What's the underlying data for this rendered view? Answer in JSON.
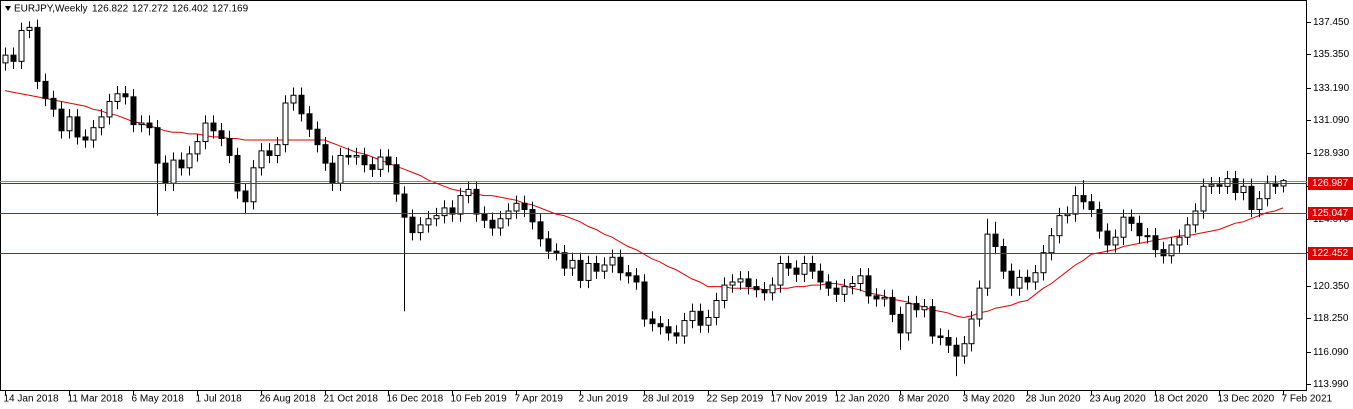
{
  "chart_data": {
    "type": "candlestick",
    "title": "EURJPY,Weekly",
    "categories": [
      "14 Jan 2018",
      null,
      null,
      null,
      null,
      null,
      null,
      null,
      "11 Mar 2018",
      null,
      null,
      null,
      null,
      null,
      null,
      null,
      "6 May 2018",
      null,
      null,
      null,
      null,
      null,
      null,
      null,
      "1 Jul 2018",
      null,
      null,
      null,
      null,
      null,
      null,
      null,
      "26 Aug 2018",
      null,
      null,
      null,
      null,
      null,
      null,
      null,
      "21 Oct 2018",
      null,
      null,
      null,
      null,
      null,
      null,
      null,
      "16 Dec 2018",
      null,
      null,
      null,
      null,
      null,
      null,
      null,
      "10 Feb 2019",
      null,
      null,
      null,
      null,
      null,
      null,
      null,
      "7 Apr 2019",
      null,
      null,
      null,
      null,
      null,
      null,
      null,
      "2 Jun 2019",
      null,
      null,
      null,
      null,
      null,
      null,
      null,
      "28 Jul 2019",
      null,
      null,
      null,
      null,
      null,
      null,
      null,
      "22 Sep 2019",
      null,
      null,
      null,
      null,
      null,
      null,
      null,
      "17 Nov 2019",
      null,
      null,
      null,
      null,
      null,
      null,
      null,
      "12 Jan 2020",
      null,
      null,
      null,
      null,
      null,
      null,
      null,
      "8 Mar 2020",
      null,
      null,
      null,
      null,
      null,
      null,
      null,
      "3 May 2020",
      null,
      null,
      null,
      null,
      null,
      null,
      null,
      "28 Jun 2020",
      null,
      null,
      null,
      null,
      null,
      null,
      null,
      "23 Aug 2020",
      null,
      null,
      null,
      null,
      null,
      null,
      null,
      "18 Oct 2020",
      null,
      null,
      null,
      null,
      null,
      null,
      null,
      "13 Dec 2020",
      null,
      null,
      null,
      null,
      null,
      null,
      null,
      "7 Feb 2021"
    ],
    "open": [
      134.8,
      135.3,
      134.9,
      136.9,
      137.1,
      133.6,
      132.5,
      131.8,
      130.4,
      131.3,
      130.0,
      129.8,
      130.6,
      131.3,
      132.3,
      132.8,
      132.6,
      130.8,
      130.9,
      130.6,
      128.3,
      127.0,
      128.5,
      128.0,
      128.9,
      129.7,
      130.9,
      130.4,
      129.9,
      128.8,
      126.5,
      125.8,
      128.0,
      129.1,
      128.8,
      129.5,
      132.2,
      132.7,
      131.5,
      130.5,
      129.5,
      128.3,
      127.0,
      128.8,
      128.7,
      128.8,
      128.2,
      127.9,
      128.7,
      128.2,
      126.3,
      124.8,
      123.8,
      124.3,
      124.7,
      124.9,
      125.4,
      125.0,
      126.2,
      126.6,
      125.0,
      124.6,
      124.1,
      124.7,
      125.2,
      125.7,
      125.3,
      124.5,
      123.4,
      122.6,
      122.5,
      121.5,
      122.0,
      120.7,
      121.8,
      121.3,
      121.7,
      122.2,
      121.2,
      121.0,
      120.6,
      118.2,
      117.9,
      117.7,
      117.3,
      117.1,
      118.1,
      118.7,
      117.8,
      118.3,
      119.4,
      120.4,
      120.6,
      120.8,
      120.3,
      120.1,
      119.9,
      120.4,
      121.8,
      121.5,
      121.1,
      121.8,
      121.3,
      120.6,
      120.2,
      119.8,
      120.3,
      120.5,
      121.0,
      119.7,
      119.5,
      119.6,
      118.5,
      117.3,
      119.2,
      118.8,
      119.0,
      117.1,
      117.0,
      116.5,
      115.8,
      116.6,
      118.2,
      120.2,
      123.7,
      122.9,
      121.3,
      120.2,
      120.9,
      120.6,
      121.2,
      122.5,
      123.6,
      124.9,
      125.0,
      126.2,
      125.8,
      125.3,
      123.9,
      123.0,
      123.5,
      124.8,
      124.4,
      123.6,
      123.6,
      122.7,
      122.3,
      123.0,
      123.5,
      124.3,
      125.2,
      126.8,
      126.9,
      126.8,
      127.3,
      126.4,
      126.8,
      125.3,
      126.0,
      127.0,
      126.822
    ],
    "high": [
      135.8,
      135.8,
      137.4,
      137.5,
      137.6,
      134.1,
      133.0,
      132.3,
      131.8,
      131.8,
      130.5,
      131.1,
      131.8,
      132.8,
      133.3,
      133.3,
      133.1,
      131.4,
      131.4,
      131.1,
      128.8,
      129.0,
      129.0,
      129.4,
      130.2,
      131.4,
      131.4,
      130.9,
      130.4,
      129.3,
      127.0,
      128.5,
      129.6,
      129.6,
      130.0,
      132.7,
      133.2,
      133.2,
      132.0,
      131.0,
      130.0,
      128.8,
      129.3,
      129.3,
      129.3,
      129.3,
      128.7,
      129.2,
      129.2,
      128.7,
      126.8,
      125.3,
      124.8,
      125.2,
      125.4,
      125.9,
      125.9,
      126.7,
      127.1,
      127.1,
      125.5,
      125.1,
      125.2,
      125.7,
      126.2,
      126.2,
      125.8,
      125.0,
      123.9,
      123.1,
      123.0,
      122.5,
      122.5,
      122.3,
      122.3,
      122.2,
      122.7,
      122.7,
      121.7,
      121.5,
      121.1,
      118.7,
      118.4,
      118.2,
      117.8,
      118.6,
      119.2,
      119.2,
      118.8,
      119.9,
      120.9,
      121.1,
      121.3,
      121.3,
      120.8,
      120.6,
      120.9,
      122.3,
      122.3,
      122.0,
      122.3,
      122.3,
      121.8,
      121.1,
      120.7,
      120.8,
      121.0,
      121.5,
      121.5,
      120.2,
      120.1,
      120.1,
      119.0,
      119.7,
      119.7,
      119.5,
      119.5,
      117.6,
      117.5,
      117.0,
      117.1,
      118.7,
      120.7,
      124.7,
      124.5,
      123.4,
      121.8,
      121.4,
      121.4,
      121.7,
      123.0,
      124.1,
      125.4,
      125.5,
      126.8,
      127.2,
      126.3,
      125.8,
      124.4,
      124.0,
      125.3,
      125.3,
      124.9,
      124.1,
      124.1,
      123.2,
      123.5,
      124.0,
      124.8,
      125.7,
      127.3,
      127.4,
      127.4,
      127.8,
      127.8,
      127.3,
      127.3,
      126.5,
      127.5,
      127.5,
      127.272
    ],
    "low": [
      134.3,
      134.4,
      134.4,
      136.4,
      133.1,
      132.0,
      131.3,
      129.9,
      129.9,
      129.5,
      129.3,
      129.3,
      130.1,
      130.8,
      131.8,
      132.1,
      130.3,
      130.3,
      130.1,
      124.9,
      126.5,
      126.5,
      127.5,
      127.5,
      128.4,
      129.2,
      129.9,
      129.4,
      128.3,
      126.0,
      125.0,
      125.3,
      127.5,
      128.3,
      128.3,
      129.0,
      131.7,
      131.0,
      130.0,
      129.0,
      127.8,
      126.5,
      126.5,
      128.2,
      128.2,
      127.7,
      127.4,
      127.4,
      127.7,
      125.8,
      118.7,
      123.3,
      123.3,
      123.8,
      124.2,
      124.4,
      124.5,
      124.5,
      125.7,
      124.5,
      124.1,
      123.6,
      123.6,
      124.2,
      124.7,
      124.8,
      124.0,
      122.9,
      122.1,
      122.0,
      121.0,
      121.0,
      120.2,
      120.2,
      120.8,
      120.8,
      121.2,
      120.7,
      120.5,
      120.1,
      117.7,
      117.4,
      117.2,
      116.8,
      116.6,
      116.6,
      117.6,
      117.3,
      117.3,
      117.8,
      118.9,
      119.9,
      120.1,
      119.8,
      119.6,
      119.4,
      119.4,
      119.9,
      121.0,
      120.6,
      120.6,
      120.8,
      120.1,
      119.7,
      119.3,
      119.3,
      119.8,
      120.0,
      119.2,
      119.0,
      119.0,
      118.0,
      116.2,
      116.8,
      118.3,
      118.3,
      116.6,
      116.5,
      116.0,
      114.5,
      115.3,
      116.1,
      117.7,
      119.7,
      122.4,
      120.8,
      119.7,
      119.7,
      120.1,
      120.1,
      120.7,
      122.0,
      123.1,
      124.4,
      124.5,
      125.3,
      124.8,
      123.4,
      122.5,
      122.5,
      123.0,
      123.9,
      123.1,
      123.1,
      122.2,
      121.8,
      121.8,
      122.5,
      123.0,
      123.8,
      124.7,
      126.3,
      126.3,
      126.3,
      125.9,
      125.9,
      124.8,
      124.8,
      125.5,
      126.3,
      126.402
    ],
    "close": [
      135.3,
      134.9,
      136.9,
      137.1,
      133.6,
      132.5,
      131.8,
      130.4,
      131.3,
      130.0,
      129.8,
      130.6,
      131.3,
      132.3,
      132.8,
      132.6,
      130.8,
      130.9,
      130.6,
      128.3,
      127.0,
      128.5,
      128.0,
      128.9,
      129.7,
      130.9,
      130.4,
      129.9,
      128.8,
      126.5,
      125.8,
      128.0,
      129.1,
      128.8,
      129.5,
      132.2,
      132.7,
      131.5,
      130.5,
      129.5,
      128.3,
      127.0,
      128.8,
      128.7,
      128.8,
      128.2,
      127.9,
      128.7,
      128.2,
      126.3,
      124.8,
      123.8,
      124.3,
      124.7,
      124.9,
      125.4,
      125.0,
      126.2,
      126.6,
      125.0,
      124.6,
      124.1,
      124.7,
      125.2,
      125.7,
      125.3,
      124.5,
      123.4,
      122.6,
      122.5,
      121.5,
      122.0,
      120.7,
      121.8,
      121.3,
      121.7,
      122.2,
      121.2,
      121.0,
      120.6,
      118.2,
      117.9,
      117.7,
      117.3,
      117.1,
      118.1,
      118.7,
      117.8,
      118.3,
      119.4,
      120.4,
      120.6,
      120.8,
      120.3,
      120.1,
      119.9,
      120.4,
      121.8,
      121.5,
      121.1,
      121.8,
      121.3,
      120.6,
      120.2,
      119.8,
      120.3,
      120.5,
      121.0,
      119.7,
      119.5,
      119.6,
      118.5,
      117.3,
      119.2,
      118.8,
      119.0,
      117.1,
      117.0,
      116.5,
      115.8,
      116.6,
      118.2,
      120.2,
      123.7,
      122.9,
      121.3,
      120.2,
      120.9,
      120.6,
      121.2,
      122.5,
      123.6,
      124.9,
      125.0,
      126.2,
      125.8,
      125.3,
      123.9,
      123.0,
      123.5,
      124.8,
      124.4,
      123.6,
      123.6,
      122.7,
      122.3,
      123.0,
      123.5,
      124.3,
      125.2,
      126.8,
      126.9,
      126.8,
      127.3,
      126.4,
      126.8,
      125.3,
      126.0,
      127.0,
      126.8,
      127.169
    ],
    "up_color": "#ffffff",
    "down_color": "#000000",
    "ma": {
      "color": "#e00000",
      "values": [
        133.0,
        132.9,
        132.8,
        132.7,
        132.6,
        132.5,
        132.4,
        132.3,
        132.2,
        132.1,
        132.0,
        131.8,
        131.7,
        131.5,
        131.4,
        131.2,
        131.0,
        130.9,
        130.7,
        130.6,
        130.4,
        130.3,
        130.3,
        130.2,
        130.2,
        130.1,
        130.0,
        130.0,
        129.9,
        129.9,
        129.8,
        129.8,
        129.8,
        129.8,
        129.8,
        129.8,
        129.8,
        129.8,
        129.8,
        129.8,
        129.8,
        129.6,
        129.4,
        129.2,
        129.0,
        128.9,
        128.7,
        128.5,
        128.3,
        128.1,
        127.9,
        127.7,
        127.5,
        127.2,
        127.0,
        126.8,
        126.6,
        126.5,
        126.4,
        126.3,
        126.2,
        126.2,
        126.1,
        126.0,
        125.9,
        125.7,
        125.6,
        125.4,
        125.2,
        125.0,
        124.9,
        124.7,
        124.5,
        124.2,
        124.0,
        123.7,
        123.5,
        123.2,
        122.9,
        122.7,
        122.4,
        122.1,
        121.9,
        121.6,
        121.4,
        121.1,
        120.8,
        120.6,
        120.3,
        120.3,
        120.3,
        120.2,
        120.2,
        120.2,
        120.2,
        120.1,
        120.1,
        120.2,
        120.2,
        120.3,
        120.3,
        120.4,
        120.4,
        120.5,
        120.5,
        120.4,
        120.2,
        120.1,
        119.9,
        119.8,
        119.7,
        119.5,
        119.4,
        119.3,
        119.1,
        119.0,
        118.8,
        118.7,
        118.6,
        118.4,
        118.3,
        118.4,
        118.6,
        118.7,
        118.9,
        119.0,
        119.1,
        119.3,
        119.4,
        119.8,
        120.2,
        120.5,
        120.9,
        121.3,
        121.7,
        122.0,
        122.4,
        122.5,
        122.6,
        122.7,
        122.9,
        123.0,
        123.1,
        123.2,
        123.3,
        123.4,
        123.5,
        123.6,
        123.6,
        123.7,
        123.8,
        123.9,
        124.0,
        124.2,
        124.4,
        124.5,
        124.7,
        124.9,
        125.1,
        125.2,
        125.4
      ]
    },
    "levels": [
      {
        "value": 126.987,
        "color": "#e00000"
      },
      {
        "value": 125.047,
        "color": "#e00000"
      },
      {
        "value": 122.452,
        "color": "#e00000"
      }
    ],
    "ylim": [
      113.6,
      138.68
    ],
    "yticks": [
      {
        "value": 113.99,
        "label": "113.990"
      },
      {
        "value": 116.09,
        "label": "116.090"
      },
      {
        "value": 118.25,
        "label": "118.250"
      },
      {
        "value": 120.35,
        "label": "120.350"
      },
      {
        "value": 122.57,
        "label": "122.570"
      },
      {
        "value": 124.67,
        "label": "124.670"
      },
      {
        "value": 126.83,
        "label": "126.830"
      },
      {
        "value": 128.93,
        "label": "128.930"
      },
      {
        "value": 131.09,
        "label": "131.090"
      },
      {
        "value": 133.19,
        "label": "133.190"
      },
      {
        "value": 135.35,
        "label": "135.350"
      },
      {
        "value": 137.45,
        "label": "137.450"
      }
    ]
  }
}
